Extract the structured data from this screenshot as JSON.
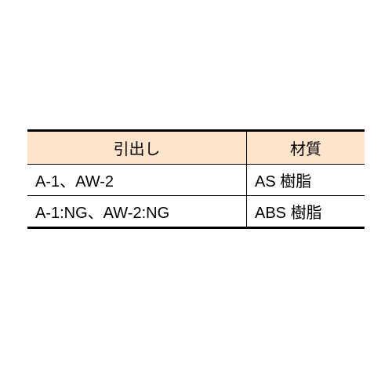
{
  "table": {
    "header_bg": "#ffe4cc",
    "border_color": "#000000",
    "columns": [
      {
        "label": "引出し",
        "width": "65%"
      },
      {
        "label": "材質",
        "width": "35%"
      }
    ],
    "rows": [
      {
        "c0": "A-1、AW-2",
        "c1": "AS 樹脂"
      },
      {
        "c0": "A-1:NG、AW-2:NG",
        "c1": "ABS 樹脂"
      }
    ]
  }
}
